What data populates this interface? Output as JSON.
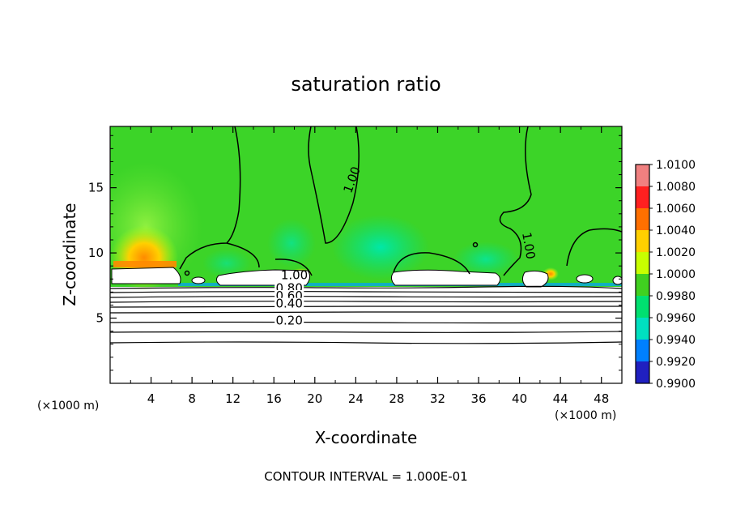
{
  "chart_data": {
    "type": "heatmap",
    "title": "saturation ratio",
    "xlabel": "X-coordinate",
    "ylabel": "Z-coordinate",
    "x_unit": "(×1000 m)",
    "y_unit": "(×1000 m)",
    "x_ticks": [
      4,
      8,
      12,
      16,
      20,
      24,
      28,
      32,
      36,
      40,
      44,
      48
    ],
    "y_ticks": [
      5,
      10,
      15
    ],
    "xlim": [
      0,
      50
    ],
    "ylim": [
      0,
      19.7
    ],
    "grid": false,
    "footer": "CONTOUR INTERVAL = 1.000E-01",
    "contour_labels": [
      {
        "text": "1.00",
        "x": 24,
        "y": 15.5
      },
      {
        "text": "1.00",
        "x": 40.5,
        "y": 10.5
      },
      {
        "text": "1.00",
        "x": 18,
        "y": 8.0
      },
      {
        "text": "0.80",
        "x": 17.5,
        "y": 7.0
      },
      {
        "text": "0.60",
        "x": 17.5,
        "y": 6.4
      },
      {
        "text": "0.40",
        "x": 17.5,
        "y": 5.8
      },
      {
        "text": "0.20",
        "x": 17.5,
        "y": 4.5
      }
    ],
    "colorbar": {
      "ticks": [
        "1.0100",
        "1.0080",
        "1.0060",
        "1.0040",
        "1.0020",
        "1.0000",
        "0.9980",
        "0.9960",
        "0.9940",
        "0.9920",
        "0.9900"
      ],
      "colors": [
        "#f08080",
        "#ff2020",
        "#ff7000",
        "#ffd000",
        "#c8ff00",
        "#40d020",
        "#00e070",
        "#00e0c0",
        "#0080ff",
        "#2020c0",
        "#7010a0"
      ]
    }
  }
}
